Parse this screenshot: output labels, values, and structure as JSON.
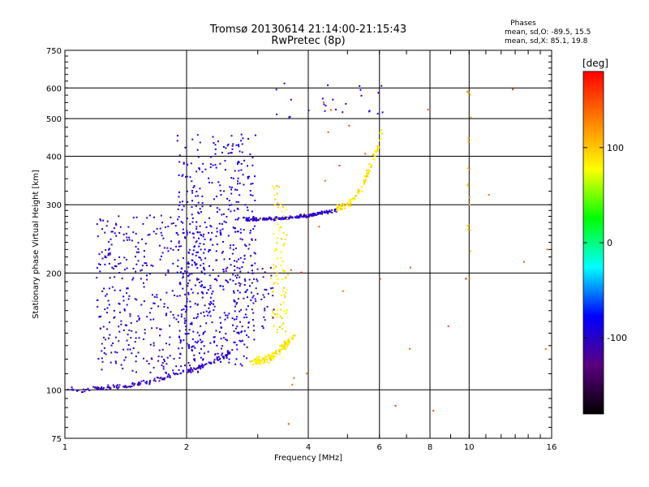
{
  "chart_data": {
    "type": "scatter",
    "title": "Tromsø 20130614 21:14:00-21:15:43",
    "subtitle": "RwPretec (8p)",
    "stats_header": "Phases",
    "stats_o": "mean, sd,O: -89.5, 15.5",
    "stats_x": "mean, sd,X: 85.1, 19.8",
    "xlabel": "Frequency [MHz]",
    "ylabel": "Stationary phase Virtual Height [km]",
    "x_scale": "log",
    "y_scale": "log",
    "xlim": [
      1,
      16
    ],
    "ylim": [
      75,
      750
    ],
    "x_ticks": [
      1,
      2,
      4,
      6,
      8,
      10,
      16
    ],
    "x_tick_labels": [
      "1",
      "2",
      "4",
      "6",
      "8",
      "10",
      "16"
    ],
    "x_gridlines": [
      2,
      4,
      6,
      8,
      10
    ],
    "y_ticks": [
      75,
      100,
      200,
      300,
      400,
      500,
      600,
      750
    ],
    "y_tick_labels": [
      "75",
      "100",
      "200",
      "300",
      "400",
      "500",
      "600",
      "750"
    ],
    "y_gridlines": [
      100,
      200,
      300,
      400,
      500,
      600
    ],
    "grid": true,
    "colorbar": {
      "label": "[deg]",
      "range": [
        -180,
        180
      ],
      "ticks": [
        100,
        0,
        -100
      ],
      "tick_labels": [
        "100",
        "0",
        "-100"
      ],
      "colors": [
        "#000000",
        "#5a0080",
        "#0000ff",
        "#00ffff",
        "#00ff00",
        "#ffff00",
        "#ff8000",
        "#ff0000"
      ]
    },
    "point_groups": [
      {
        "name": "E-layer trace",
        "x_range": [
          1.0,
          2.6
        ],
        "height_start": 100,
        "height_end": 125,
        "phase": -105,
        "count": 170,
        "spread": 0.02
      },
      {
        "name": "F1 oblique cloud",
        "x_range": [
          1.2,
          2.2
        ],
        "height_range": [
          110,
          280
        ],
        "phase": -100,
        "count": 420,
        "spread": 0.02
      },
      {
        "name": "F-layer column",
        "x_range": [
          1.9,
          2.95
        ],
        "height_range": [
          115,
          460
        ],
        "phase": -95,
        "count": 520,
        "spread": 0.02
      },
      {
        "name": "F2 O-mode trace",
        "x_range": [
          2.8,
          4.7
        ],
        "height_start": 275,
        "height_end": 290,
        "phase": -100,
        "count": 200,
        "spread": 0.015
      },
      {
        "name": "X-mode lower trace",
        "x_range": [
          2.9,
          3.7
        ],
        "height_start": 118,
        "height_end": 140,
        "phase": 85,
        "count": 130,
        "spread": 0.04
      },
      {
        "name": "X-mode vertical trace",
        "x_range": [
          3.25,
          3.55
        ],
        "height_range": [
          140,
          340
        ],
        "phase": 90,
        "count": 90,
        "spread": 0.03
      },
      {
        "name": "Critical cusp",
        "x_range": [
          4.7,
          6.1
        ],
        "height_start": 295,
        "height_end": 470,
        "phase": 90,
        "count": 110,
        "spread": 0.03
      },
      {
        "name": "High F echoes",
        "x_range": [
          3.3,
          6.2
        ],
        "height_range": [
          500,
          620
        ],
        "phase": -95,
        "count": 25,
        "spread": 0.02
      },
      {
        "name": "Spread F",
        "x_range": [
          2.5,
          3.3
        ],
        "height_range": [
          140,
          210
        ],
        "phase": -110,
        "count": 70,
        "spread": 0.02
      },
      {
        "name": "10 MHz interference",
        "x_range": [
          9.9,
          10.1
        ],
        "height_range": [
          160,
          600
        ],
        "phase": 110,
        "count": 18,
        "spread": 0.01
      },
      {
        "name": "Scattered noise",
        "x_range": [
          3.5,
          16
        ],
        "height_range": [
          80,
          680
        ],
        "phase": 150,
        "count": 28,
        "spread": 0.0
      }
    ]
  }
}
